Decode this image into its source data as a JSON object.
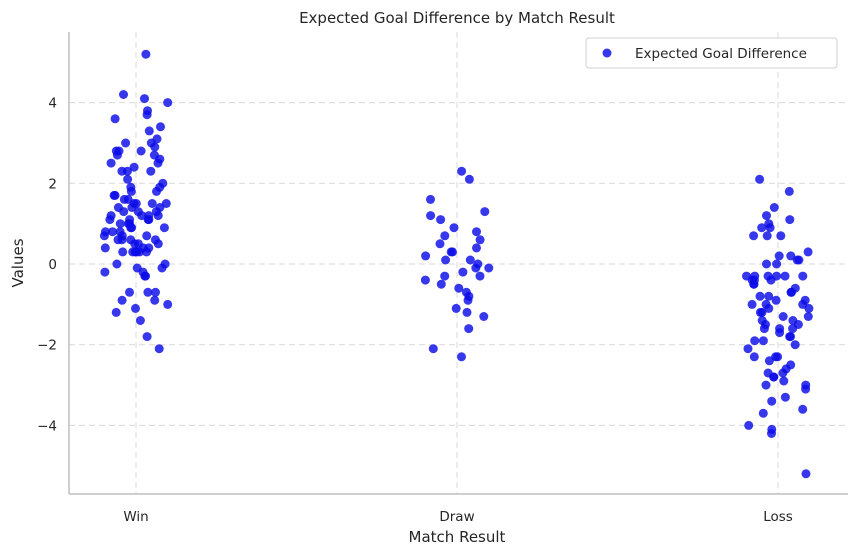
{
  "chart_data": {
    "type": "scatter",
    "title": "Expected Goal Difference by Match Result",
    "xlabel": "Match Result",
    "ylabel": "Values",
    "categories": [
      "Win",
      "Draw",
      "Loss"
    ],
    "ylim": [
      -5.7,
      5.75
    ],
    "yticks": [
      -4,
      -2,
      0,
      2,
      4
    ],
    "ytick_labels": [
      "−4",
      "−2",
      "0",
      "2",
      "4"
    ],
    "grid": true,
    "legend_position": "top-right",
    "marker_color": "#0b0be8",
    "series": [
      {
        "name": "Expected Goal Difference",
        "points": [
          [
            "Win",
            5.2
          ],
          [
            "Win",
            4.2
          ],
          [
            "Win",
            4.1
          ],
          [
            "Win",
            4.0
          ],
          [
            "Win",
            3.8
          ],
          [
            "Win",
            3.7
          ],
          [
            "Win",
            3.6
          ],
          [
            "Win",
            3.4
          ],
          [
            "Win",
            3.3
          ],
          [
            "Win",
            3.1
          ],
          [
            "Win",
            3.0
          ],
          [
            "Win",
            3.0
          ],
          [
            "Win",
            2.9
          ],
          [
            "Win",
            2.8
          ],
          [
            "Win",
            2.8
          ],
          [
            "Win",
            2.8
          ],
          [
            "Win",
            2.7
          ],
          [
            "Win",
            2.7
          ],
          [
            "Win",
            2.6
          ],
          [
            "Win",
            2.5
          ],
          [
            "Win",
            2.5
          ],
          [
            "Win",
            2.4
          ],
          [
            "Win",
            2.3
          ],
          [
            "Win",
            2.3
          ],
          [
            "Win",
            2.3
          ],
          [
            "Win",
            2.1
          ],
          [
            "Win",
            2.0
          ],
          [
            "Win",
            1.9
          ],
          [
            "Win",
            1.9
          ],
          [
            "Win",
            1.8
          ],
          [
            "Win",
            1.8
          ],
          [
            "Win",
            1.7
          ],
          [
            "Win",
            1.7
          ],
          [
            "Win",
            1.6
          ],
          [
            "Win",
            1.6
          ],
          [
            "Win",
            1.5
          ],
          [
            "Win",
            1.5
          ],
          [
            "Win",
            1.5
          ],
          [
            "Win",
            1.5
          ],
          [
            "Win",
            1.4
          ],
          [
            "Win",
            1.4
          ],
          [
            "Win",
            1.4
          ],
          [
            "Win",
            1.3
          ],
          [
            "Win",
            1.3
          ],
          [
            "Win",
            1.3
          ],
          [
            "Win",
            1.2
          ],
          [
            "Win",
            1.2
          ],
          [
            "Win",
            1.2
          ],
          [
            "Win",
            1.2
          ],
          [
            "Win",
            1.1
          ],
          [
            "Win",
            1.1
          ],
          [
            "Win",
            1.1
          ],
          [
            "Win",
            1.1
          ],
          [
            "Win",
            1.0
          ],
          [
            "Win",
            1.0
          ],
          [
            "Win",
            1.0
          ],
          [
            "Win",
            0.9
          ],
          [
            "Win",
            0.9
          ],
          [
            "Win",
            0.9
          ],
          [
            "Win",
            0.8
          ],
          [
            "Win",
            0.8
          ],
          [
            "Win",
            0.8
          ],
          [
            "Win",
            0.7
          ],
          [
            "Win",
            0.7
          ],
          [
            "Win",
            0.7
          ],
          [
            "Win",
            0.6
          ],
          [
            "Win",
            0.6
          ],
          [
            "Win",
            0.6
          ],
          [
            "Win",
            0.6
          ],
          [
            "Win",
            0.5
          ],
          [
            "Win",
            0.5
          ],
          [
            "Win",
            0.5
          ],
          [
            "Win",
            0.4
          ],
          [
            "Win",
            0.4
          ],
          [
            "Win",
            0.4
          ],
          [
            "Win",
            0.3
          ],
          [
            "Win",
            0.3
          ],
          [
            "Win",
            0.3
          ],
          [
            "Win",
            0.3
          ],
          [
            "Win",
            0.3
          ],
          [
            "Win",
            0.3
          ],
          [
            "Win",
            0.0
          ],
          [
            "Win",
            0.0
          ],
          [
            "Win",
            -0.1
          ],
          [
            "Win",
            -0.1
          ],
          [
            "Win",
            -0.2
          ],
          [
            "Win",
            -0.2
          ],
          [
            "Win",
            -0.3
          ],
          [
            "Win",
            -0.3
          ],
          [
            "Win",
            -0.7
          ],
          [
            "Win",
            -0.7
          ],
          [
            "Win",
            -0.7
          ],
          [
            "Win",
            -0.9
          ],
          [
            "Win",
            -0.9
          ],
          [
            "Win",
            -1.0
          ],
          [
            "Win",
            -1.1
          ],
          [
            "Win",
            -1.2
          ],
          [
            "Win",
            -1.4
          ],
          [
            "Win",
            -1.8
          ],
          [
            "Win",
            -2.1
          ],
          [
            "Draw",
            2.3
          ],
          [
            "Draw",
            2.1
          ],
          [
            "Draw",
            1.6
          ],
          [
            "Draw",
            1.3
          ],
          [
            "Draw",
            1.2
          ],
          [
            "Draw",
            1.1
          ],
          [
            "Draw",
            0.9
          ],
          [
            "Draw",
            0.8
          ],
          [
            "Draw",
            0.7
          ],
          [
            "Draw",
            0.6
          ],
          [
            "Draw",
            0.5
          ],
          [
            "Draw",
            0.4
          ],
          [
            "Draw",
            0.3
          ],
          [
            "Draw",
            0.3
          ],
          [
            "Draw",
            0.2
          ],
          [
            "Draw",
            0.1
          ],
          [
            "Draw",
            0.1
          ],
          [
            "Draw",
            0.0
          ],
          [
            "Draw",
            -0.1
          ],
          [
            "Draw",
            -0.1
          ],
          [
            "Draw",
            -0.2
          ],
          [
            "Draw",
            -0.3
          ],
          [
            "Draw",
            -0.3
          ],
          [
            "Draw",
            -0.4
          ],
          [
            "Draw",
            -0.5
          ],
          [
            "Draw",
            -0.6
          ],
          [
            "Draw",
            -0.7
          ],
          [
            "Draw",
            -0.8
          ],
          [
            "Draw",
            -0.9
          ],
          [
            "Draw",
            -1.1
          ],
          [
            "Draw",
            -1.2
          ],
          [
            "Draw",
            -1.3
          ],
          [
            "Draw",
            -1.6
          ],
          [
            "Draw",
            -2.1
          ],
          [
            "Draw",
            -2.3
          ],
          [
            "Loss",
            2.1
          ],
          [
            "Loss",
            1.8
          ],
          [
            "Loss",
            1.4
          ],
          [
            "Loss",
            1.2
          ],
          [
            "Loss",
            1.1
          ],
          [
            "Loss",
            1.0
          ],
          [
            "Loss",
            0.9
          ],
          [
            "Loss",
            0.9
          ],
          [
            "Loss",
            0.7
          ],
          [
            "Loss",
            0.7
          ],
          [
            "Loss",
            0.7
          ],
          [
            "Loss",
            0.3
          ],
          [
            "Loss",
            0.2
          ],
          [
            "Loss",
            0.2
          ],
          [
            "Loss",
            0.1
          ],
          [
            "Loss",
            0.1
          ],
          [
            "Loss",
            0.0
          ],
          [
            "Loss",
            0.0
          ],
          [
            "Loss",
            -0.3
          ],
          [
            "Loss",
            -0.3
          ],
          [
            "Loss",
            -0.3
          ],
          [
            "Loss",
            -0.3
          ],
          [
            "Loss",
            -0.3
          ],
          [
            "Loss",
            -0.3
          ],
          [
            "Loss",
            -0.4
          ],
          [
            "Loss",
            -0.4
          ],
          [
            "Loss",
            -0.4
          ],
          [
            "Loss",
            -0.5
          ],
          [
            "Loss",
            -0.5
          ],
          [
            "Loss",
            -0.6
          ],
          [
            "Loss",
            -0.7
          ],
          [
            "Loss",
            -0.7
          ],
          [
            "Loss",
            -0.8
          ],
          [
            "Loss",
            -0.8
          ],
          [
            "Loss",
            -0.9
          ],
          [
            "Loss",
            -0.9
          ],
          [
            "Loss",
            -1.0
          ],
          [
            "Loss",
            -1.0
          ],
          [
            "Loss",
            -1.0
          ],
          [
            "Loss",
            -1.1
          ],
          [
            "Loss",
            -1.1
          ],
          [
            "Loss",
            -1.2
          ],
          [
            "Loss",
            -1.2
          ],
          [
            "Loss",
            -1.3
          ],
          [
            "Loss",
            -1.3
          ],
          [
            "Loss",
            -1.4
          ],
          [
            "Loss",
            -1.4
          ],
          [
            "Loss",
            -1.5
          ],
          [
            "Loss",
            -1.5
          ],
          [
            "Loss",
            -1.6
          ],
          [
            "Loss",
            -1.6
          ],
          [
            "Loss",
            -1.6
          ],
          [
            "Loss",
            -1.7
          ],
          [
            "Loss",
            -1.8
          ],
          [
            "Loss",
            -1.8
          ],
          [
            "Loss",
            -1.9
          ],
          [
            "Loss",
            -1.9
          ],
          [
            "Loss",
            -2.0
          ],
          [
            "Loss",
            -2.1
          ],
          [
            "Loss",
            -2.3
          ],
          [
            "Loss",
            -2.3
          ],
          [
            "Loss",
            -2.3
          ],
          [
            "Loss",
            -2.4
          ],
          [
            "Loss",
            -2.5
          ],
          [
            "Loss",
            -2.6
          ],
          [
            "Loss",
            -2.7
          ],
          [
            "Loss",
            -2.7
          ],
          [
            "Loss",
            -2.8
          ],
          [
            "Loss",
            -2.8
          ],
          [
            "Loss",
            -2.9
          ],
          [
            "Loss",
            -3.0
          ],
          [
            "Loss",
            -3.0
          ],
          [
            "Loss",
            -3.1
          ],
          [
            "Loss",
            -3.3
          ],
          [
            "Loss",
            -3.4
          ],
          [
            "Loss",
            -3.6
          ],
          [
            "Loss",
            -3.7
          ],
          [
            "Loss",
            -4.0
          ],
          [
            "Loss",
            -4.1
          ],
          [
            "Loss",
            -4.2
          ],
          [
            "Loss",
            -5.2
          ]
        ]
      }
    ]
  }
}
